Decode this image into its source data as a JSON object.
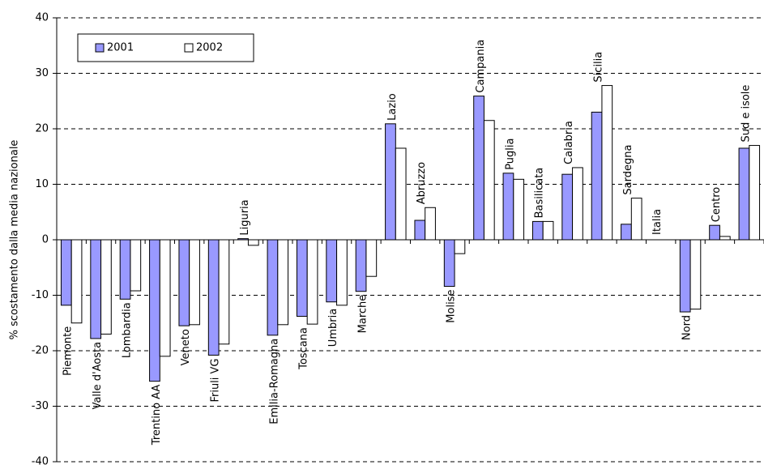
{
  "chart_data": {
    "type": "bar",
    "y_label": "% scostamento dalla media nazionale",
    "categories": [
      "Piemonte",
      "Valle d'Aosta",
      "Lombardia",
      "Trentino AA",
      "Veneto",
      "Friuli VG",
      "Liguria",
      "Emilia-Romagna",
      "Toscana",
      "Umbria",
      "Marche",
      "Lazio",
      "Abruzzo",
      "Molise",
      "Campania",
      "Puglia",
      "Basilicata",
      "Calabria",
      "Sicilia",
      "Sardegna",
      "Italia",
      "Nord",
      "Centro",
      "Sud e isole"
    ],
    "series": [
      {
        "name": "2001",
        "color": "#9999ff",
        "values": [
          -11.8,
          -17.8,
          -10.7,
          -25.5,
          -15.5,
          -20.8,
          0.2,
          -17.2,
          -13.8,
          -11.2,
          -9.3,
          20.9,
          3.5,
          -8.4,
          25.9,
          12,
          3.3,
          11.8,
          23,
          2.8,
          0,
          -13,
          2.6,
          16.5
        ]
      },
      {
        "name": "2002",
        "color": "#ffffff",
        "values": [
          -15,
          -17,
          -9.2,
          -21,
          -15.3,
          -18.8,
          -1,
          -15.3,
          -15.2,
          -11.8,
          -6.6,
          16.5,
          5.8,
          -2.5,
          21.5,
          10.9,
          3.3,
          13,
          27.8,
          7.5,
          0,
          -12.5,
          0.6,
          17
        ]
      }
    ],
    "ylim": [
      -40,
      40
    ],
    "yticks": [
      -40,
      -30,
      -20,
      -10,
      0,
      10,
      20,
      30,
      40
    ],
    "grid": true,
    "legend": "top-left"
  }
}
